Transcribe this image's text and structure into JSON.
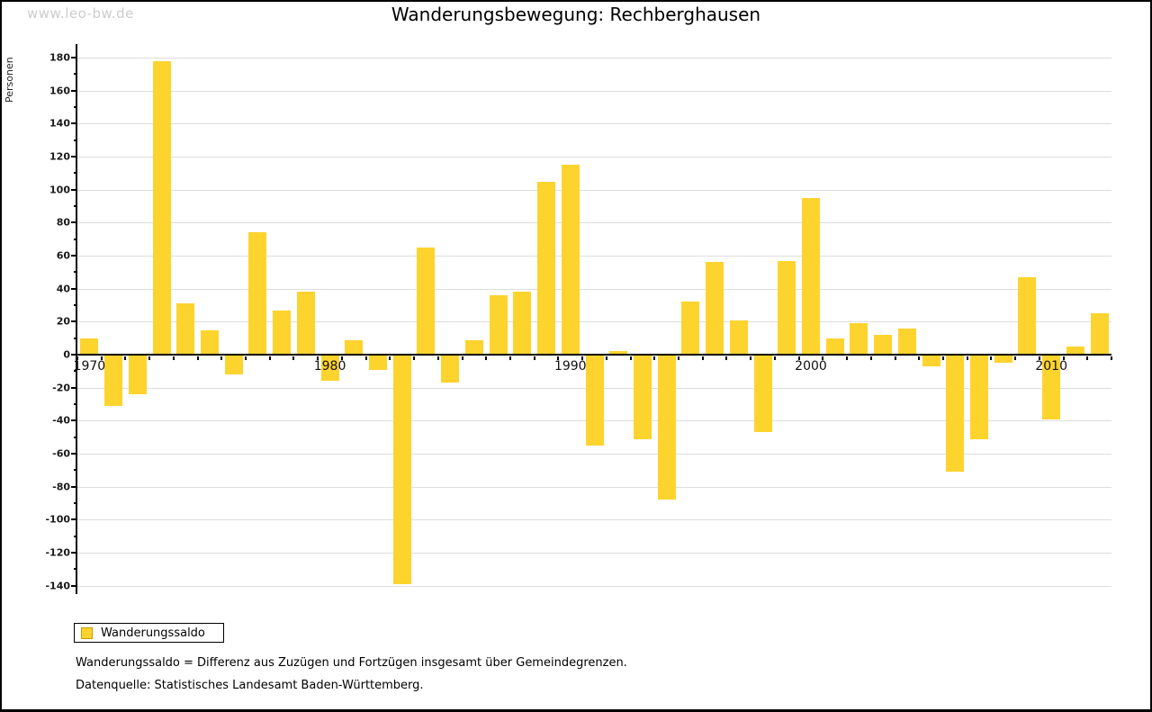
{
  "watermark": "www.leo-bw.de",
  "title": "Wanderungsbewegung: Rechberghausen",
  "y_axis_label": "Personen",
  "legend": {
    "label": "Wanderungssaldo"
  },
  "footnotes": {
    "line1": "Wanderungssaldo = Differenz aus Zuzügen und Fortzügen insgesamt über Gemeindegrenzen.",
    "line2": "Datenquelle: Statistisches Landesamt Baden-Württemberg."
  },
  "colors": {
    "bar": "#FDD32E",
    "swatch_border": "#C89B00",
    "grid": "#DDDDDD",
    "axis": "#000000",
    "watermark": "#CCCCCC"
  },
  "chart_data": {
    "type": "bar",
    "title": "Wanderungsbewegung: Rechberghausen",
    "xlabel": "",
    "ylabel": "Personen",
    "series_name": "Wanderungssaldo",
    "x": [
      1970,
      1971,
      1972,
      1973,
      1974,
      1975,
      1976,
      1977,
      1978,
      1979,
      1980,
      1981,
      1982,
      1983,
      1984,
      1985,
      1986,
      1987,
      1988,
      1989,
      1990,
      1991,
      1992,
      1993,
      1994,
      1995,
      1996,
      1997,
      1998,
      1999,
      2000,
      2001,
      2002,
      2003,
      2004,
      2005,
      2006,
      2007,
      2008,
      2009,
      2010,
      2011,
      2012
    ],
    "values": [
      10,
      -31,
      -24,
      178,
      31,
      15,
      -12,
      74,
      27,
      38,
      -16,
      9,
      -9,
      -139,
      65,
      -17,
      9,
      36,
      38,
      105,
      115,
      -55,
      2,
      -51,
      -88,
      32,
      56,
      21,
      -47,
      57,
      95,
      10,
      19,
      12,
      16,
      -7,
      -71,
      -51,
      -5,
      47,
      -39,
      5,
      25
    ],
    "ylim": [
      -145,
      188
    ],
    "ytick_step_labeled": 20,
    "ytick_step_minor": 10,
    "yticks_labeled": [
      180,
      160,
      140,
      120,
      100,
      80,
      60,
      40,
      20,
      0,
      -20,
      -40,
      -60,
      -80,
      -100,
      -120,
      -140
    ],
    "xtick_labels": [
      "1970",
      "1980",
      "1990",
      "2000",
      "2010"
    ],
    "xtick_label_positions": [
      1970,
      1980,
      1990,
      2000,
      2010
    ],
    "grid": "horizontal",
    "legend_position": "bottom-left",
    "bar_color": "#FDD32E"
  }
}
